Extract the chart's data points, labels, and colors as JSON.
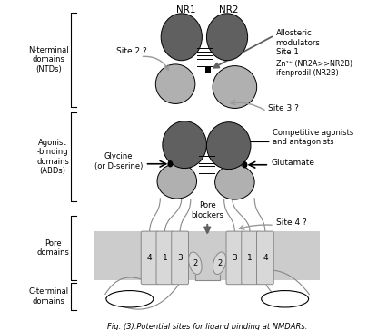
{
  "title": "Fig. (3).Potential sites for ligand binding at NMDARs.",
  "bg_color": "#ffffff",
  "membrane_color": "#cccccc",
  "dark_gray": "#606060",
  "mid_gray": "#999999",
  "light_gray": "#b0b0b0",
  "very_light_gray": "#e8e8e8",
  "seg_gray": "#d8d8d8",
  "black": "#000000",
  "white": "#ffffff",
  "label_NR1": "NR1",
  "label_NR2": "NR2",
  "label_ntd": "N-terminal\ndomains\n(NTDs)",
  "label_abd": "Agonist\n-binding\ndomains\n(ABDs)",
  "label_pore": "Pore\ndomains",
  "label_ctd": "C-terminal\ndomains",
  "label_site1": "Allosteric\nmodulators\nSite 1",
  "label_site2": "Site 2 ?",
  "label_site3": "Site 3 ?",
  "label_site4": "Site 4 ?",
  "label_zn": "Zn²⁺ (NR2A>>NR2B)\nifenprodil (NR2B)",
  "label_glycine": "Glycine\n(or D-serine)",
  "label_glutamate": "Glutamate",
  "label_pore_blockers": "Pore\nblockers",
  "label_competitive": "Competitive agonists\nand antagonists"
}
